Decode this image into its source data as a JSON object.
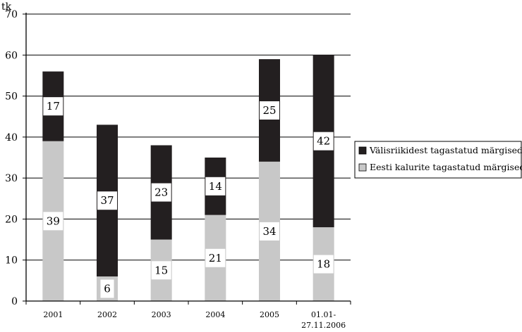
{
  "chart_data": {
    "type": "bar",
    "stacked": true,
    "ylabel": "tk",
    "ylim": [
      0,
      70
    ],
    "yticks": [
      0,
      10,
      20,
      30,
      40,
      50,
      60,
      70
    ],
    "grid": true,
    "legend_position": "right",
    "categories": [
      "2001",
      "2002",
      "2003",
      "2004",
      "2005",
      "01.01-27.11.2006"
    ],
    "category_lines": [
      [
        "2001"
      ],
      [
        "2002"
      ],
      [
        "2003"
      ],
      [
        "2004"
      ],
      [
        "2005"
      ],
      [
        "01.01-",
        "27.11.2006"
      ]
    ],
    "series": [
      {
        "name": "Eesti kalurite tagastatud märgised",
        "values": [
          39,
          6,
          15,
          21,
          34,
          18
        ],
        "color": "#c8c8c8"
      },
      {
        "name": "Välisriikidest tagastatud märgised",
        "values": [
          17,
          37,
          23,
          14,
          25,
          42
        ],
        "color": "#231f20"
      }
    ],
    "legend_order": [
      1,
      0
    ]
  }
}
